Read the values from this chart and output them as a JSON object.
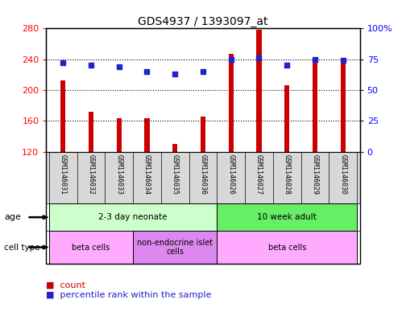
{
  "title": "GDS4937 / 1393097_at",
  "samples": [
    "GSM1146031",
    "GSM1146032",
    "GSM1146033",
    "GSM1146034",
    "GSM1146035",
    "GSM1146036",
    "GSM1146026",
    "GSM1146027",
    "GSM1146028",
    "GSM1146029",
    "GSM1146030"
  ],
  "counts": [
    213,
    172,
    163,
    163,
    130,
    166,
    247,
    278,
    206,
    237,
    237
  ],
  "percentiles": [
    72,
    70,
    69,
    65,
    63,
    65,
    75,
    76,
    70,
    75,
    74
  ],
  "ymin": 120,
  "ymax": 280,
  "ylim_left": [
    120,
    280
  ],
  "ylim_right": [
    0,
    100
  ],
  "yticks_left": [
    120,
    160,
    200,
    240,
    280
  ],
  "yticks_right": [
    0,
    25,
    50,
    75,
    100
  ],
  "bar_color": "#cc0000",
  "dot_color": "#2222cc",
  "age_groups": [
    {
      "label": "2-3 day neonate",
      "start": 0,
      "end": 6,
      "color": "#ccffcc"
    },
    {
      "label": "10 week adult",
      "start": 6,
      "end": 11,
      "color": "#66ee66"
    }
  ],
  "cell_type_groups": [
    {
      "label": "beta cells",
      "start": 0,
      "end": 3,
      "color": "#ffaaff"
    },
    {
      "label": "non-endocrine islet\ncells",
      "start": 3,
      "end": 6,
      "color": "#dd88ee"
    },
    {
      "label": "beta cells",
      "start": 6,
      "end": 11,
      "color": "#ffaaff"
    }
  ],
  "sample_bg_color": "#d8d8d8",
  "bar_width": 0.18,
  "dot_size": 20
}
